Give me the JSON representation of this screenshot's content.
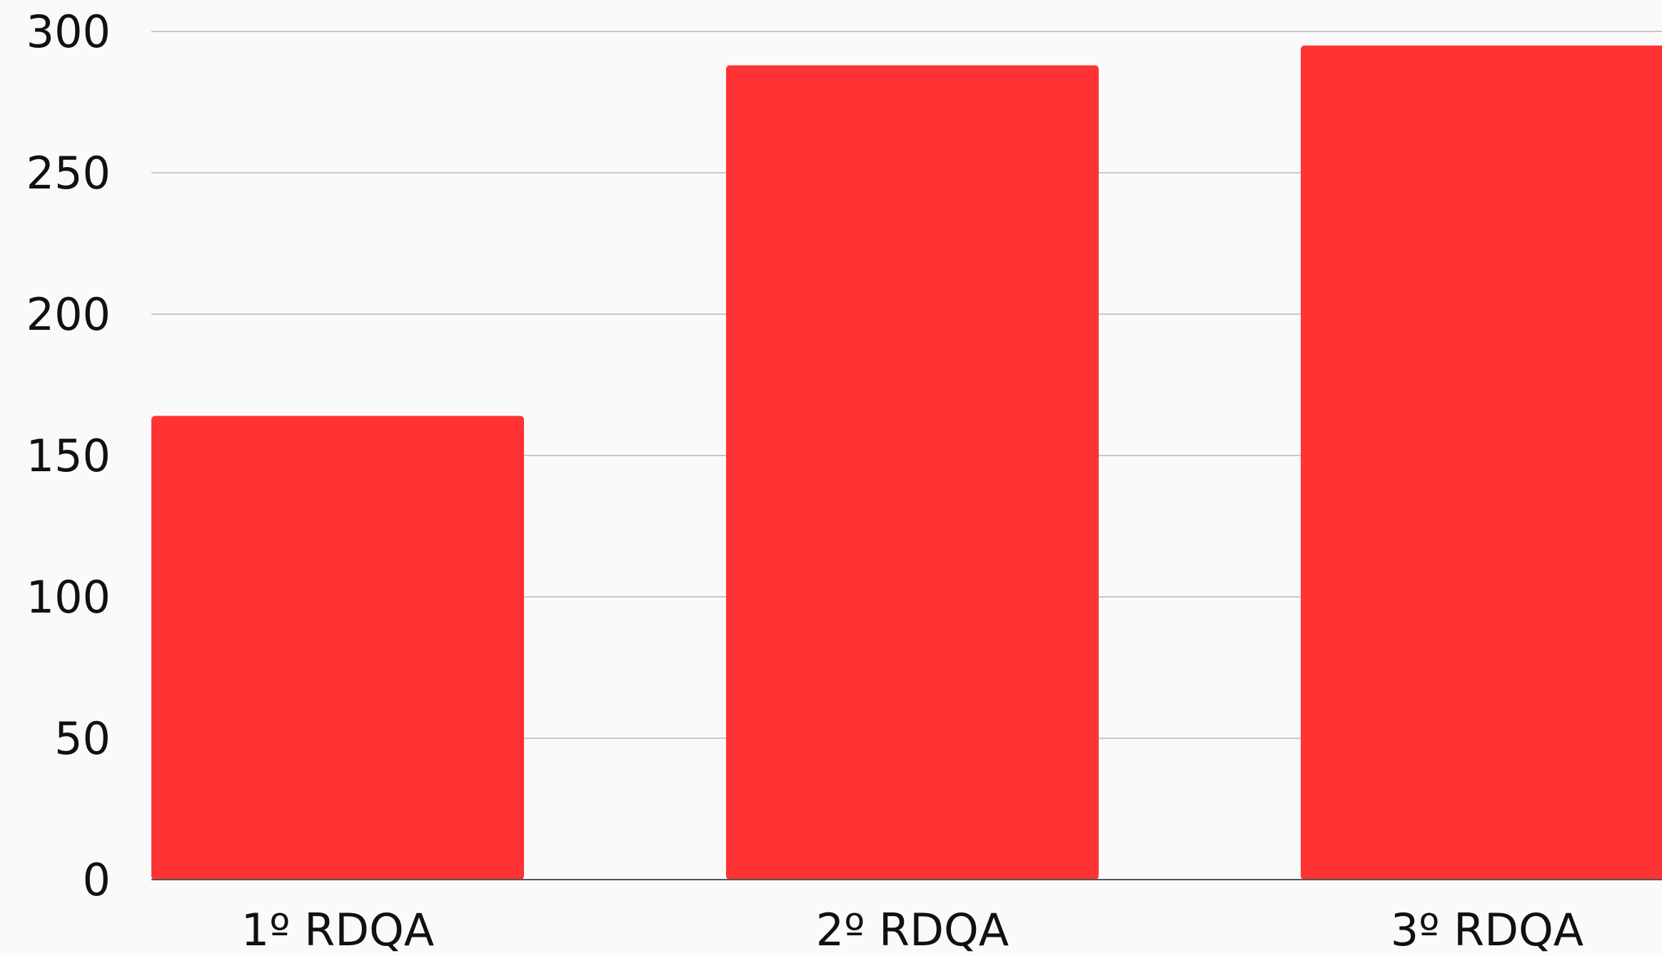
{
  "chart_data": {
    "type": "bar",
    "title": "",
    "xlabel": "",
    "ylabel": "",
    "categories": [
      "1º RDQA",
      "2º RDQA",
      "3º RDQA"
    ],
    "values": [
      164,
      288,
      295
    ],
    "ylim": [
      0,
      300
    ],
    "yticks": [
      "0",
      "50",
      "100",
      "150",
      "200",
      "250",
      "300"
    ],
    "grid": true,
    "legend": "none"
  },
  "colors": {
    "bar": "#ff3333",
    "grid": "#c8c8c8",
    "axis": "#555555",
    "text": "#111111",
    "background": "#fafafa"
  }
}
